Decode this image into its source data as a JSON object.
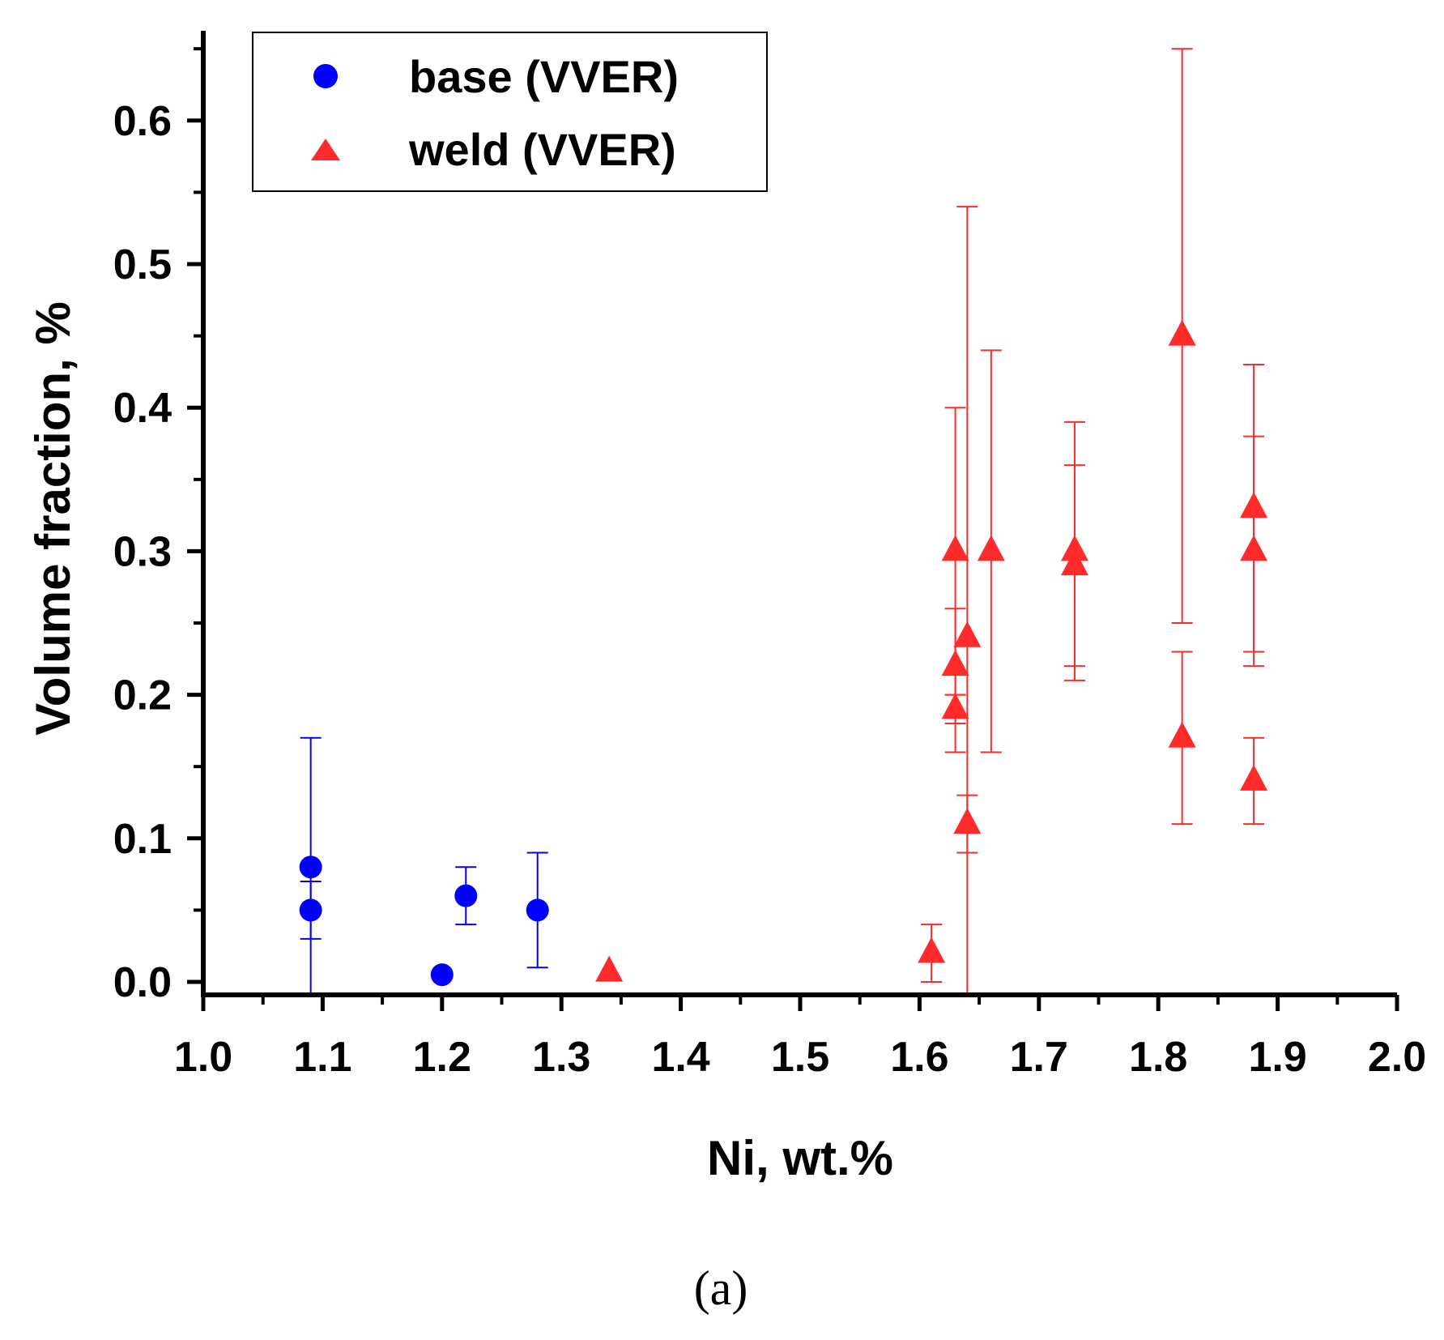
{
  "chart_data": {
    "type": "scatter",
    "title": "",
    "xlabel": "Ni, wt.%",
    "ylabel": "Volume fraction, %",
    "xlim": [
      1.0,
      2.0
    ],
    "ylim": [
      -0.01,
      0.66
    ],
    "xticks": [
      1.0,
      1.1,
      1.2,
      1.3,
      1.4,
      1.5,
      1.6,
      1.7,
      1.8,
      1.9,
      2.0
    ],
    "yticks": [
      0.0,
      0.1,
      0.2,
      0.3,
      0.4,
      0.5,
      0.6
    ],
    "xtick_labels": [
      "1.0",
      "1.1",
      "1.2",
      "1.3",
      "1.4",
      "1.5",
      "1.6",
      "1.7",
      "1.8",
      "1.9",
      "2.0"
    ],
    "ytick_labels": [
      "0.0",
      "0.1",
      "0.2",
      "0.3",
      "0.4",
      "0.5",
      "0.6"
    ],
    "grid": false,
    "legend_position": "top-left",
    "series": [
      {
        "name": "base (VVER)",
        "marker": "circle",
        "color": "#0000ff",
        "points": [
          {
            "x": 1.09,
            "y": 0.08,
            "ylow": 0.03,
            "yhigh": 0.17
          },
          {
            "x": 1.09,
            "y": 0.05,
            "ylow": -0.01,
            "yhigh": 0.07
          },
          {
            "x": 1.2,
            "y": 0.005
          },
          {
            "x": 1.22,
            "y": 0.06,
            "ylow": 0.04,
            "yhigh": 0.08
          },
          {
            "x": 1.28,
            "y": 0.05,
            "ylow": 0.01,
            "yhigh": 0.09
          }
        ]
      },
      {
        "name": "weld (VVER)",
        "marker": "triangle",
        "color": "#ff2a2a",
        "points": [
          {
            "x": 1.34,
            "y": 0.007
          },
          {
            "x": 1.61,
            "y": 0.02,
            "ylow": 0.0,
            "yhigh": 0.04
          },
          {
            "x": 1.63,
            "y": 0.3,
            "ylow": 0.2,
            "yhigh": 0.4
          },
          {
            "x": 1.63,
            "y": 0.22,
            "ylow": 0.18,
            "yhigh": 0.26
          },
          {
            "x": 1.63,
            "y": 0.19,
            "ylow": 0.16,
            "yhigh": 0.2
          },
          {
            "x": 1.64,
            "y": 0.24,
            "ylow": -0.01,
            "yhigh": 0.54
          },
          {
            "x": 1.64,
            "y": 0.11,
            "ylow": 0.09,
            "yhigh": 0.13
          },
          {
            "x": 1.66,
            "y": 0.3,
            "ylow": 0.16,
            "yhigh": 0.44
          },
          {
            "x": 1.73,
            "y": 0.3,
            "ylow": 0.21,
            "yhigh": 0.39
          },
          {
            "x": 1.73,
            "y": 0.29,
            "ylow": 0.22,
            "yhigh": 0.36
          },
          {
            "x": 1.82,
            "y": 0.45,
            "ylow": 0.25,
            "yhigh": 0.65
          },
          {
            "x": 1.82,
            "y": 0.17,
            "ylow": 0.11,
            "yhigh": 0.23
          },
          {
            "x": 1.88,
            "y": 0.33,
            "ylow": 0.23,
            "yhigh": 0.43
          },
          {
            "x": 1.88,
            "y": 0.3,
            "ylow": 0.22,
            "yhigh": 0.38
          },
          {
            "x": 1.88,
            "y": 0.14,
            "ylow": 0.11,
            "yhigh": 0.17
          }
        ]
      }
    ],
    "panel_label": "(a)"
  }
}
